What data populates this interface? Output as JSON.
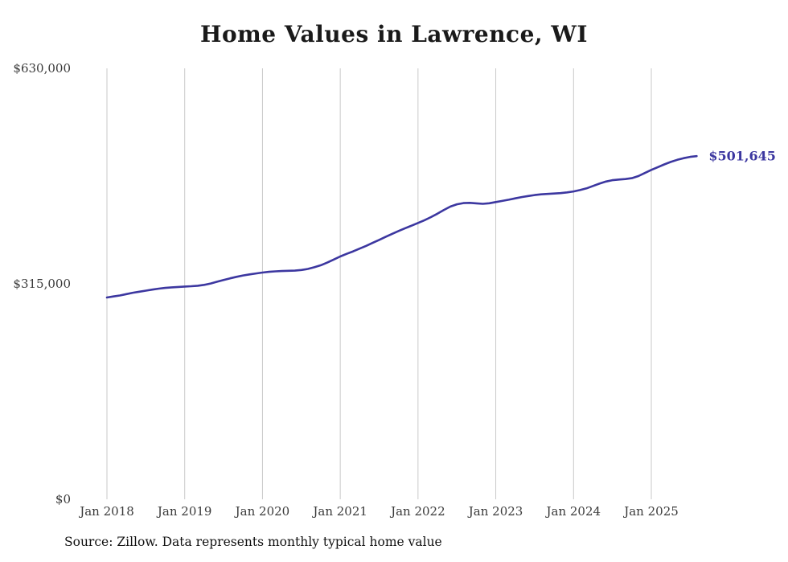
{
  "chart": {
    "title": "Home Values in Lawrence, WI",
    "end_label": "$501,645",
    "source_note": "Source: Zillow. Data represents monthly typical home value",
    "line_color": "#3c37a0",
    "grid_color": "#c9c9c9",
    "tick_text_color": "#3a3a3a"
  },
  "chart_data": {
    "type": "line",
    "title": "Home Values in Lawrence, WI",
    "xlabel": "",
    "ylabel": "",
    "x_start": "2018-01",
    "x_end": "2025-08",
    "x_tick_labels": [
      "Jan 2018",
      "Jan 2019",
      "Jan 2020",
      "Jan 2021",
      "Jan 2022",
      "Jan 2023",
      "Jan 2024",
      "Jan 2025"
    ],
    "y_ticks": [
      0,
      315000,
      630000
    ],
    "y_tick_labels": [
      "$0",
      "$315,000",
      "$630,000"
    ],
    "ylim": [
      0,
      630000
    ],
    "grid": "vertical-only",
    "legend": "none",
    "end_value": 501645,
    "end_label": "$501,645",
    "source": "Source: Zillow. Data represents monthly typical home value",
    "series": [
      {
        "name": "Monthly typical home value",
        "values": [
          295000,
          296500,
          298000,
          300000,
          302000,
          303500,
          305000,
          306500,
          308000,
          309000,
          309800,
          310400,
          311000,
          311500,
          312200,
          313500,
          315500,
          318000,
          320500,
          323000,
          325200,
          327200,
          328800,
          330200,
          331500,
          332500,
          333200,
          333700,
          334000,
          334300,
          335200,
          336800,
          339200,
          342200,
          346000,
          350500,
          355000,
          358800,
          362500,
          366500,
          370500,
          374800,
          379200,
          383600,
          388000,
          392200,
          396200,
          400000,
          404000,
          408000,
          412500,
          417500,
          423000,
          428000,
          431200,
          433000,
          433400,
          432600,
          432000,
          432800,
          434500,
          436200,
          438000,
          440000,
          441800,
          443400,
          444800,
          445800,
          446400,
          447000,
          447600,
          448600,
          450000,
          452000,
          454500,
          458000,
          461500,
          464500,
          466500,
          467500,
          468200,
          469500,
          472500,
          477000,
          481500,
          485500,
          489500,
          493200,
          496300,
          498700,
          500600,
          501645
        ]
      }
    ]
  }
}
